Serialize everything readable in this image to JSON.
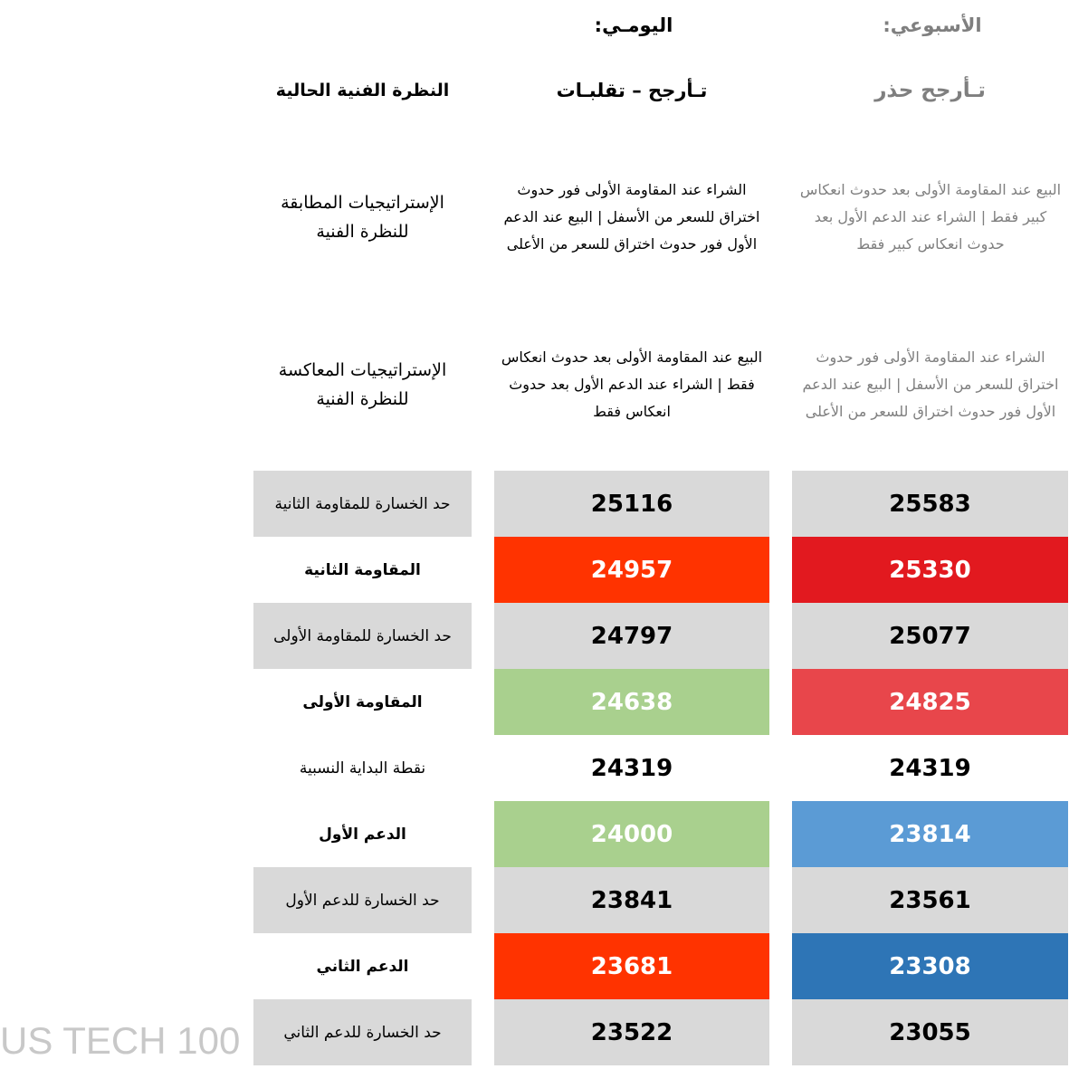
{
  "header": {
    "weekly": "الأسبوعي:",
    "daily": "اليومـي:"
  },
  "outlook": {
    "label": "النظرة الفنية الحالية",
    "daily": "تـأرجح – تقلبـات",
    "weekly": "تـأرجح حذر"
  },
  "strategies": [
    {
      "label": "الإستراتيجيات المطابقة للنظرة الفنية",
      "daily": "الشراء عند المقاومة الأولى فور حدوث اختراق للسعر من الأسفل | البيع عند الدعم الأول فور حدوث اختراق للسعر من الأعلى",
      "weekly": "البيع عند المقاومة الأولى بعد حدوث انعكاس كبير فقط | الشراء عند الدعم الأول بعد حدوث انعكاس كبير فقط"
    },
    {
      "label": "الإستراتيجيات المعاكسة للنظرة الفنية",
      "daily": "البيع عند المقاومة الأولى بعد حدوث انعكاس فقط | الشراء عند الدعم الأول بعد حدوث انعكاس فقط",
      "weekly": "الشراء عند المقاومة الأولى فور حدوث اختراق للسعر من الأسفل | البيع عند الدعم الأول فور حدوث اختراق للسعر من الأعلى"
    }
  ],
  "levels": [
    {
      "label": "حد الخسارة للمقاومة الثانية",
      "daily": 25116,
      "weekly": 25583
    },
    {
      "label": "المقاومة الثانية",
      "daily": 24957,
      "weekly": 25330
    },
    {
      "label": "حد الخسارة للمقاومة الأولى",
      "daily": 24797,
      "weekly": 25077
    },
    {
      "label": "المقاومة الأولى",
      "daily": 24638,
      "weekly": 24825
    },
    {
      "label": "نقطة البداية النسبية",
      "daily": 24319,
      "weekly": 24319
    },
    {
      "label": "الدعم الأول",
      "daily": 24000,
      "weekly": 23814
    },
    {
      "label": "حد الخسارة للدعم الأول",
      "daily": 23841,
      "weekly": 23561
    },
    {
      "label": "الدعم الثاني",
      "daily": 23681,
      "weekly": 23308
    },
    {
      "label": "حد الخسارة للدعم الثاني",
      "daily": 23522,
      "weekly": 23055
    }
  ],
  "footer": "US TECH 100"
}
